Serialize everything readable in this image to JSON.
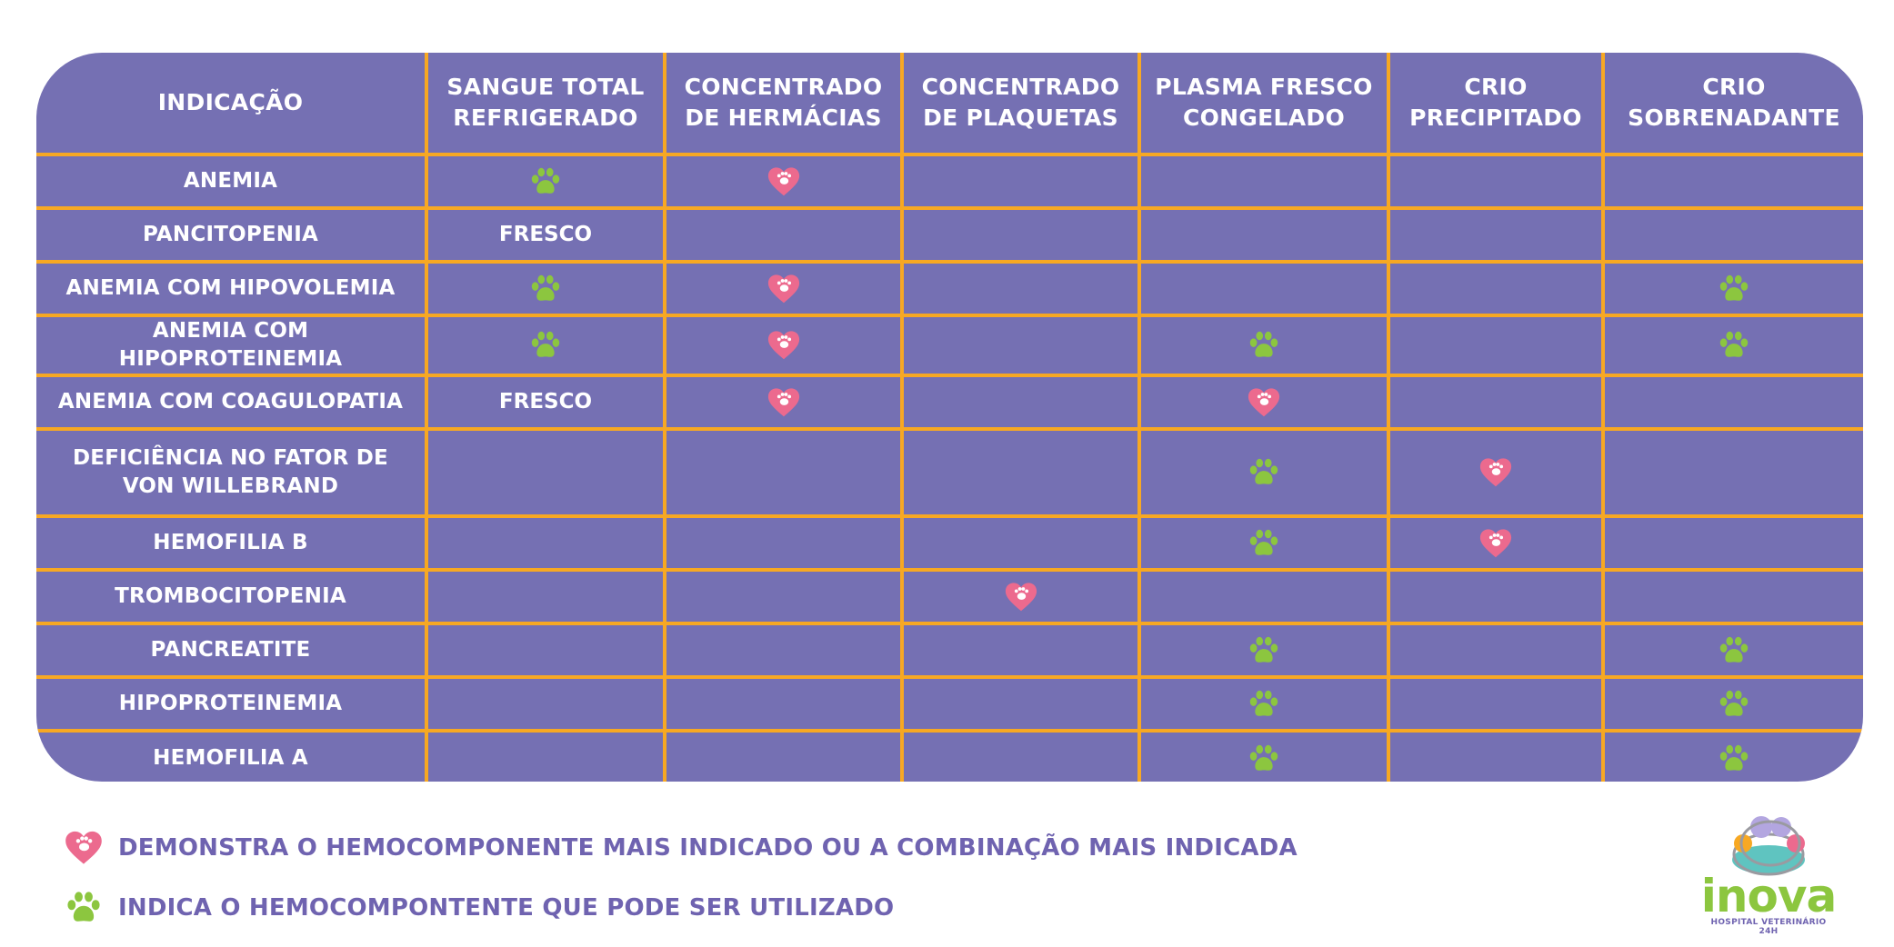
{
  "colors": {
    "background": "#ffffff",
    "table_bg": "#7570b3",
    "grid_lines": "#f7a823",
    "text": "#ffffff",
    "heart": "#ec6a8e",
    "paw": "#8cc63f",
    "legend_text": "#6f63b0"
  },
  "table": {
    "columns": [
      {
        "lines": [
          "Indicação"
        ]
      },
      {
        "lines": [
          "Sangue total",
          "refrigerado"
        ]
      },
      {
        "lines": [
          "Concentrado",
          "de Hermácias"
        ]
      },
      {
        "lines": [
          "Concentrado",
          "de plaquetas"
        ]
      },
      {
        "lines": [
          "Plasma fresco",
          "congelado"
        ]
      },
      {
        "lines": [
          "Crio",
          "precipitado"
        ]
      },
      {
        "lines": [
          "Crio",
          "sobrenadante"
        ]
      }
    ],
    "rows": [
      {
        "label_lines": [
          "Anemia"
        ],
        "cells": [
          {
            "icon": "paw-icon"
          },
          {
            "icon": "heart-icon"
          },
          {},
          {},
          {},
          {}
        ]
      },
      {
        "label_lines": [
          "Pancitopenia"
        ],
        "cells": [
          {
            "text": "Fresco"
          },
          {},
          {},
          {},
          {},
          {}
        ]
      },
      {
        "label_lines": [
          "Anemia com Hipovolemia"
        ],
        "cells": [
          {
            "icon": "paw-icon"
          },
          {
            "icon": "heart-icon"
          },
          {},
          {},
          {},
          {
            "icon": "paw-icon"
          }
        ]
      },
      {
        "label_lines": [
          "Anemia com Hipoproteinemia"
        ],
        "cells": [
          {
            "icon": "paw-icon"
          },
          {
            "icon": "heart-icon"
          },
          {},
          {
            "icon": "paw-icon"
          },
          {},
          {
            "icon": "paw-icon"
          }
        ]
      },
      {
        "label_lines": [
          "Anemia com Coagulopatia"
        ],
        "cells": [
          {
            "text": "Fresco"
          },
          {
            "icon": "heart-icon"
          },
          {},
          {
            "icon": "heart-icon"
          },
          {},
          {}
        ]
      },
      {
        "label_lines": [
          "Deficiência no fator de",
          "Von Willebrand"
        ],
        "cells": [
          {},
          {},
          {},
          {
            "icon": "paw-icon"
          },
          {
            "icon": "heart-icon"
          },
          {}
        ]
      },
      {
        "label_lines": [
          "Hemofilia B"
        ],
        "cells": [
          {},
          {},
          {},
          {
            "icon": "paw-icon"
          },
          {
            "icon": "heart-icon"
          },
          {}
        ]
      },
      {
        "label_lines": [
          "Trombocitopenia"
        ],
        "cells": [
          {},
          {},
          {
            "icon": "heart-icon"
          },
          {},
          {},
          {}
        ]
      },
      {
        "label_lines": [
          "Pancreatite"
        ],
        "cells": [
          {},
          {},
          {},
          {
            "icon": "paw-icon"
          },
          {},
          {
            "icon": "paw-icon"
          }
        ]
      },
      {
        "label_lines": [
          "Hipoproteinemia"
        ],
        "cells": [
          {},
          {},
          {},
          {
            "icon": "paw-icon"
          },
          {},
          {
            "icon": "paw-icon"
          }
        ]
      },
      {
        "label_lines": [
          "Hemofilia A"
        ],
        "cells": [
          {},
          {},
          {},
          {
            "icon": "paw-icon"
          },
          {},
          {
            "icon": "paw-icon"
          }
        ]
      }
    ]
  },
  "legend": {
    "heart": "Demonstra o hemocomponente mais indicado ou a combinação mais indicada",
    "paw": "Indica o hemocompontente que pode ser utilizado"
  },
  "logo": {
    "wordmark": "inova",
    "subtitle": "HOSPITAL VETERINÁRIO 24H"
  }
}
